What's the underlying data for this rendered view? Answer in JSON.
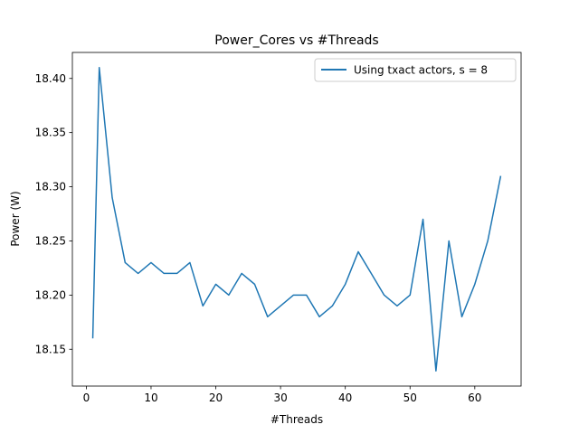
{
  "chart_data": {
    "type": "line",
    "title": "Power_Cores vs #Threads",
    "xlabel": "#Threads",
    "ylabel": "Power (W)",
    "xlim": [
      -2.15,
      67.15
    ],
    "ylim": [
      18.116,
      18.424
    ],
    "xticks": [
      0,
      10,
      20,
      30,
      40,
      50,
      60
    ],
    "xtick_labels": [
      "0",
      "10",
      "20",
      "30",
      "40",
      "50",
      "60"
    ],
    "yticks": [
      18.15,
      18.2,
      18.25,
      18.3,
      18.35,
      18.4
    ],
    "ytick_labels": [
      "18.15",
      "18.20",
      "18.25",
      "18.30",
      "18.35",
      "18.40"
    ],
    "grid": false,
    "legend_position": "top-right",
    "series": [
      {
        "name": "Using txact actors, s = 8",
        "color": "#1f77b4",
        "x": [
          1,
          2,
          4,
          6,
          8,
          10,
          12,
          14,
          16,
          18,
          20,
          22,
          24,
          26,
          28,
          30,
          32,
          34,
          36,
          38,
          40,
          42,
          44,
          46,
          48,
          50,
          52,
          54,
          56,
          58,
          60,
          62,
          64
        ],
        "y": [
          18.16,
          18.41,
          18.29,
          18.23,
          18.22,
          18.23,
          18.22,
          18.22,
          18.23,
          18.19,
          18.21,
          18.2,
          18.22,
          18.21,
          18.18,
          18.19,
          18.2,
          18.2,
          18.18,
          18.19,
          18.21,
          18.24,
          18.22,
          18.2,
          18.19,
          18.2,
          18.27,
          18.13,
          18.25,
          18.18,
          18.21,
          18.25,
          18.31
        ]
      }
    ]
  }
}
